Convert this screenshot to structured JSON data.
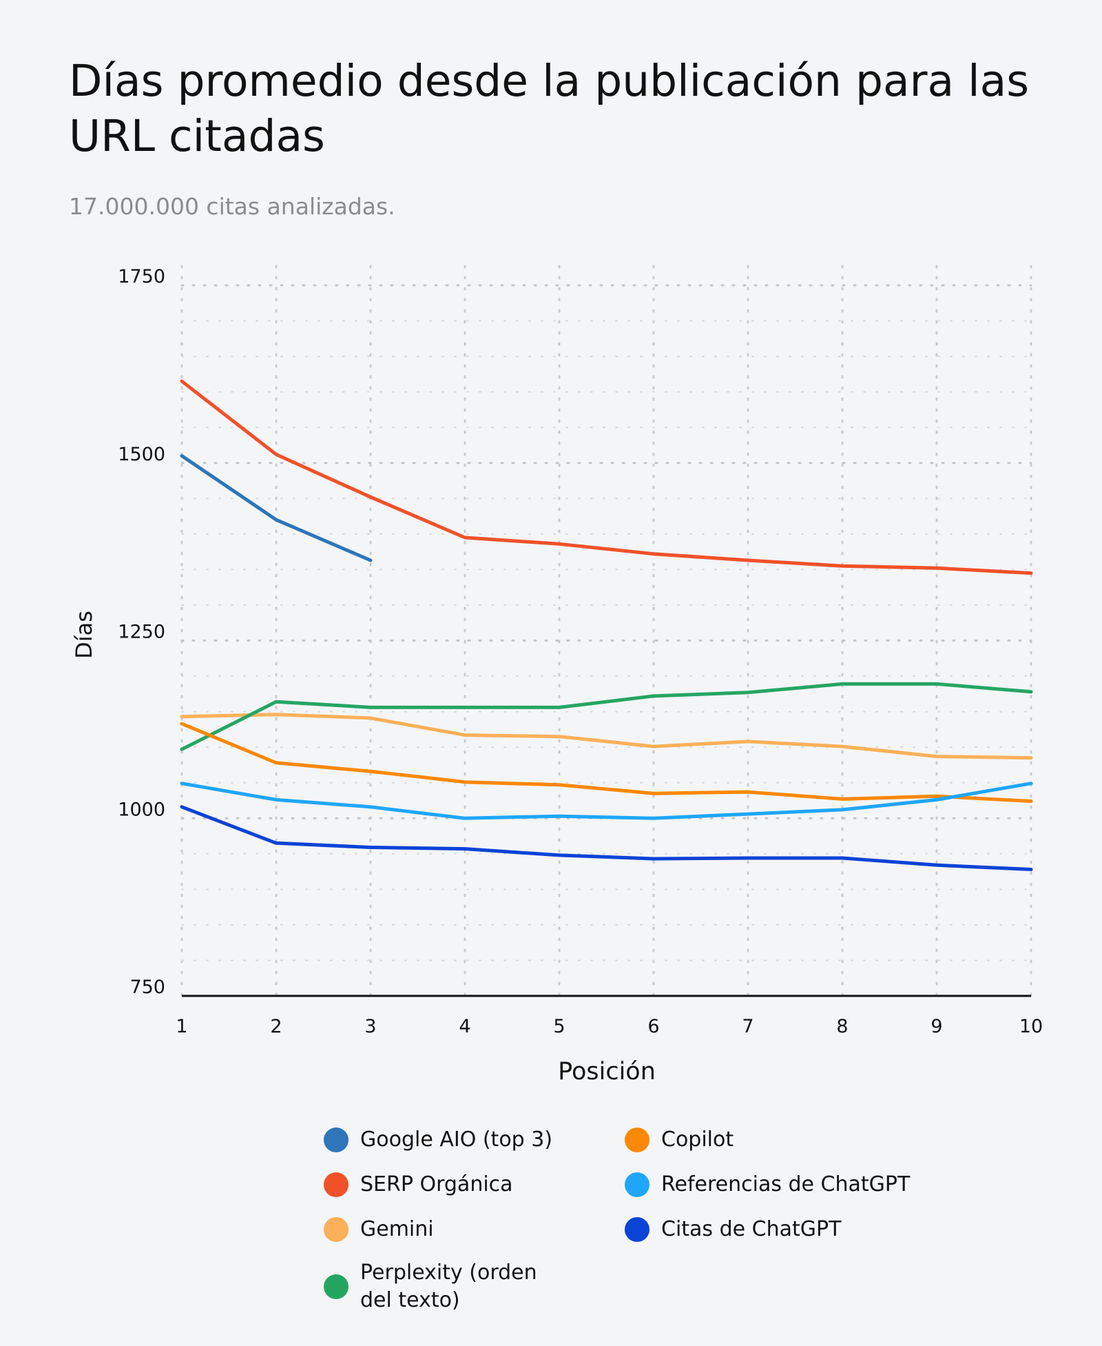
{
  "header": {
    "title": "Días promedio desde la publicación para las URL citadas",
    "subtitle": "17.000.000 citas analizadas."
  },
  "chart_data": {
    "type": "line",
    "title": "Días promedio desde la publicación para las URL citadas",
    "subtitle": "17.000.000 citas analizadas.",
    "xlabel": "Posición",
    "ylabel": "Días",
    "x": [
      1,
      2,
      3,
      4,
      5,
      6,
      7,
      8,
      9,
      10
    ],
    "xticks": [
      "1",
      "2",
      "3",
      "4",
      "5",
      "6",
      "7",
      "8",
      "9",
      "10"
    ],
    "yticks": [
      750,
      1000,
      1250,
      1500,
      1750
    ],
    "ylim": [
      750,
      1750
    ],
    "grid": true,
    "legend_position": "bottom",
    "series": [
      {
        "name": "Google AIO (top 3)",
        "color": "#2e75b9",
        "values": [
          1510,
          1420,
          1363,
          null,
          null,
          null,
          null,
          null,
          null,
          null
        ]
      },
      {
        "name": "SERP Orgánica",
        "color": "#f05128",
        "values": [
          1615,
          1512,
          1452,
          1395,
          1386,
          1372,
          1363,
          1355,
          1352,
          1345
        ]
      },
      {
        "name": "Gemini",
        "color": "#fbb059",
        "values": [
          1143,
          1146,
          1141,
          1117,
          1115,
          1101,
          1108,
          1101,
          1087,
          1085
        ]
      },
      {
        "name": "Perplexity (orden del texto)",
        "color": "#25a562",
        "values": [
          1097,
          1164,
          1156,
          1156,
          1156,
          1172,
          1177,
          1189,
          1189,
          1178
        ]
      },
      {
        "name": "Copilot",
        "color": "#fb8806",
        "values": [
          1133,
          1078,
          1066,
          1051,
          1047,
          1035,
          1037,
          1027,
          1031,
          1024
        ]
      },
      {
        "name": "Referencias de ChatGPT",
        "color": "#1fa6f8",
        "values": [
          1049,
          1026,
          1016,
          1000,
          1003,
          1000,
          1006,
          1012,
          1026,
          1049
        ]
      },
      {
        "name": "Citas de ChatGPT",
        "color": "#0b43d6",
        "values": [
          1016,
          965,
          959,
          957,
          948,
          943,
          944,
          944,
          934,
          928
        ]
      }
    ]
  }
}
